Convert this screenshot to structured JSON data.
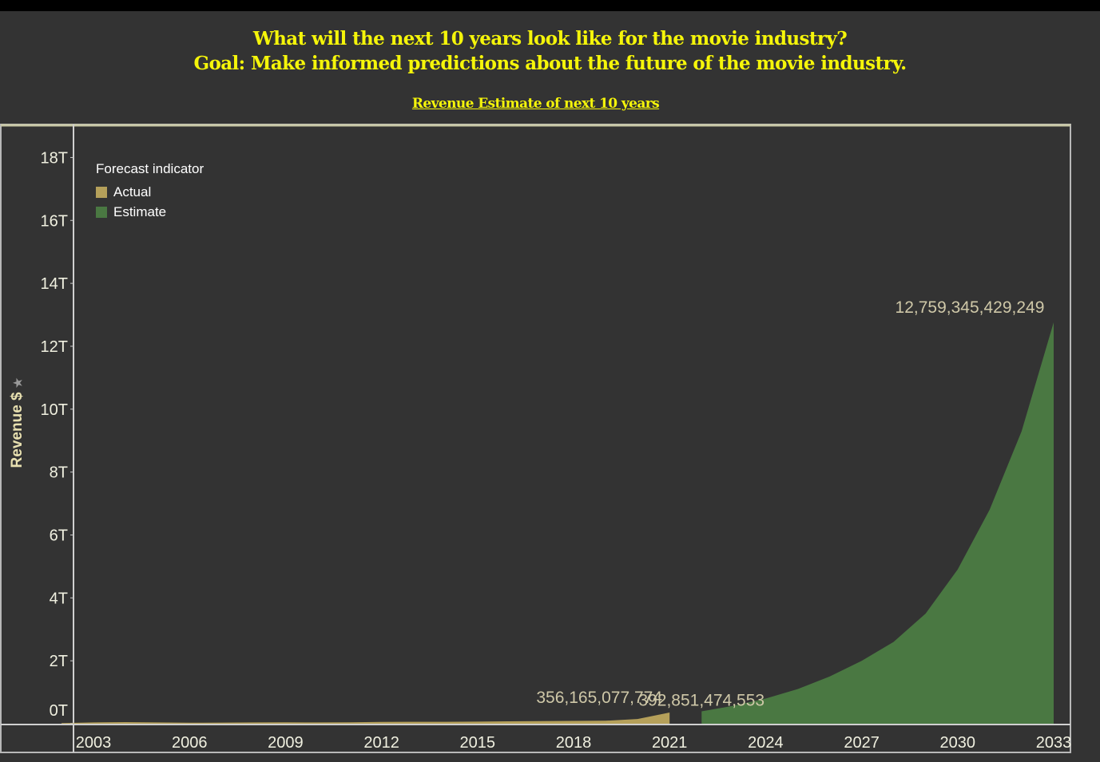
{
  "header": {
    "title_line1": "What will the next 10 years look like for the movie industry?",
    "title_line2": "Goal: Make informed predictions about the future of the movie industry.",
    "subtitle": "Revenue Estimate of next 10 years"
  },
  "chart_data": {
    "type": "area",
    "ylabel": "Revenue $",
    "y_ticks": [
      "0T",
      "2T",
      "4T",
      "6T",
      "8T",
      "10T",
      "12T",
      "14T",
      "16T",
      "18T"
    ],
    "x_ticks": [
      "2003",
      "2006",
      "2009",
      "2012",
      "2015",
      "2018",
      "2021",
      "2024",
      "2027",
      "2030",
      "2033"
    ],
    "ylim": [
      0,
      19000000000000
    ],
    "xlim": [
      2002.4,
      2033.5
    ],
    "legend": {
      "title": "Forecast indicator",
      "placement": "top-left",
      "items": [
        {
          "label": "Actual",
          "color": "#b5a05a"
        },
        {
          "label": "Estimate",
          "color": "#4a7842"
        }
      ]
    },
    "series": [
      {
        "name": "Actual",
        "color": "#b5a05a",
        "x": [
          2002,
          2003,
          2004,
          2005,
          2006,
          2007,
          2008,
          2009,
          2010,
          2011,
          2012,
          2013,
          2014,
          2015,
          2016,
          2017,
          2018,
          2019,
          2020,
          2021
        ],
        "values": [
          20000000000,
          40000000000,
          50000000000,
          40000000000,
          30000000000,
          35000000000,
          40000000000,
          45000000000,
          40000000000,
          45000000000,
          55000000000,
          60000000000,
          60000000000,
          65000000000,
          75000000000,
          80000000000,
          90000000000,
          95000000000,
          150000000000,
          356165077774
        ]
      },
      {
        "name": "Estimate",
        "color": "#4a7842",
        "x": [
          2022,
          2023,
          2024,
          2025,
          2026,
          2027,
          2028,
          2029,
          2030,
          2031,
          2032,
          2033
        ],
        "values": [
          392851474553,
          570000000000,
          800000000000,
          1100000000000,
          1500000000000,
          2000000000000,
          2600000000000,
          3500000000000,
          4900000000000,
          6800000000000,
          9300000000000,
          12759345429249
        ]
      }
    ],
    "annotations": [
      {
        "text": "356,165,077,774",
        "x": 2021,
        "y": 356165077774
      },
      {
        "text": "392,851,474,553",
        "x": 2022,
        "y": 392851474553
      },
      {
        "text": "12,759,345,429,249",
        "x": 2033,
        "y": 12759345429249
      }
    ]
  }
}
